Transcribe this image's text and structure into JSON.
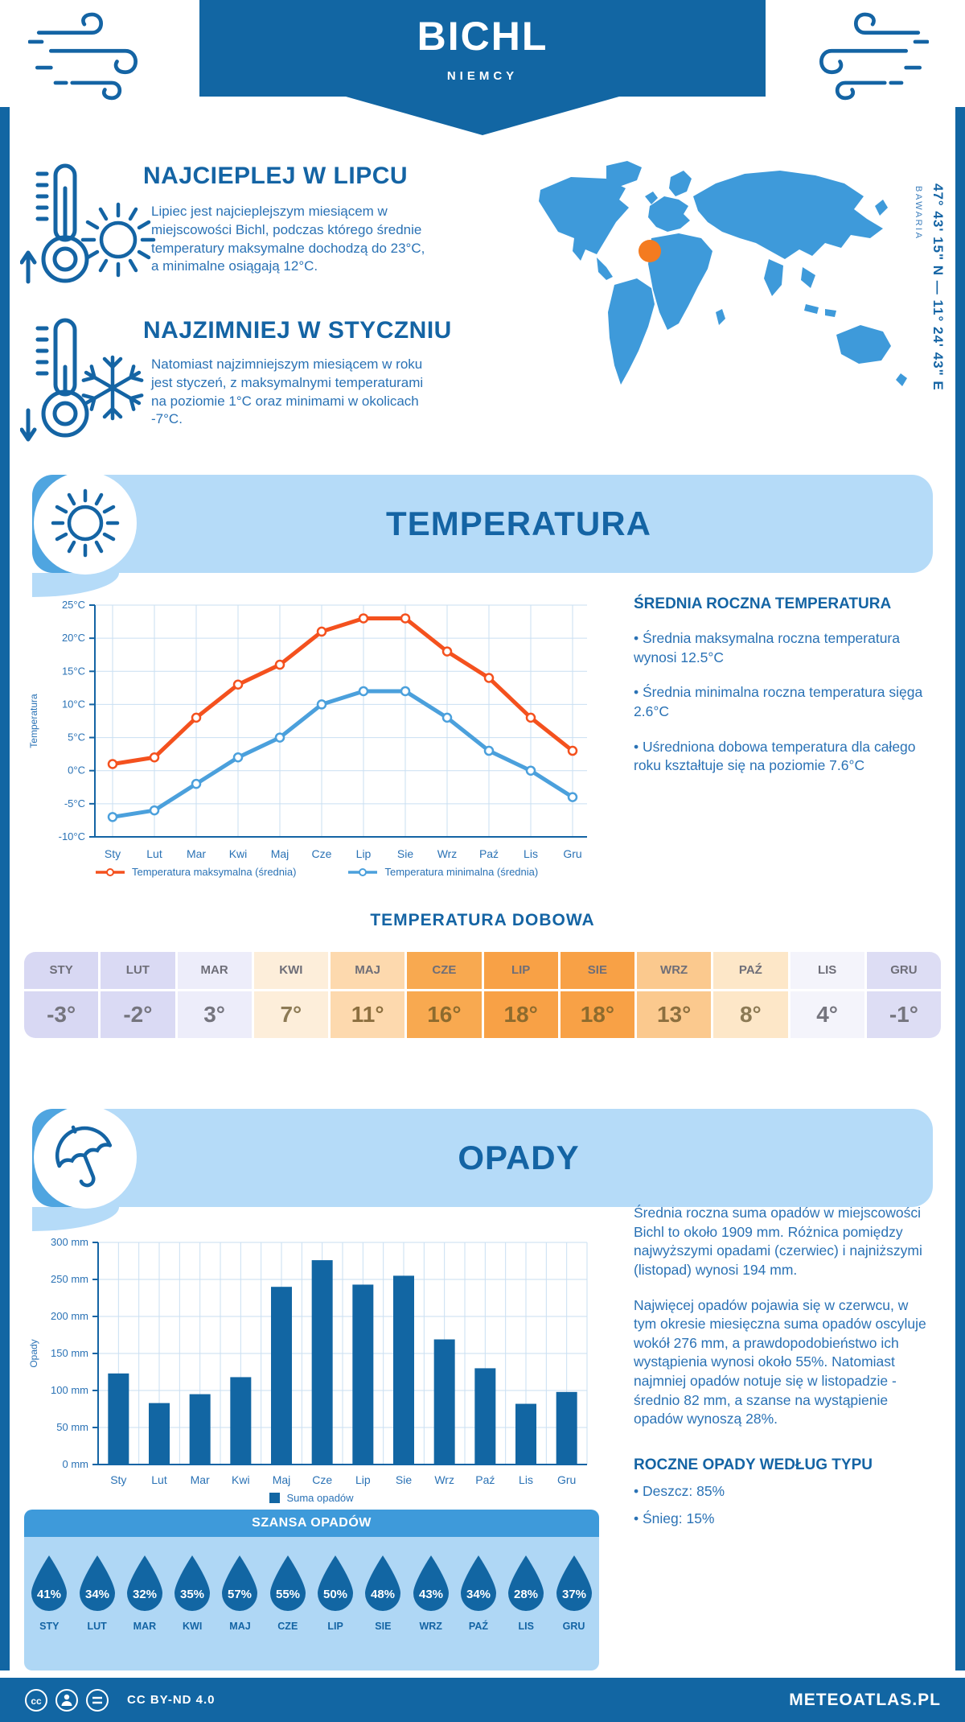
{
  "colors": {
    "primary": "#1266A3",
    "heading": "#1464A4",
    "body_text": "#2A72B5",
    "banner_bg": "#B5DBF8",
    "banner_cap": "#4FA5E0",
    "map_blue": "#3E9ADA",
    "marker_orange": "#F47B20",
    "chance_band": "#3E9ADA",
    "chance_panel": "#AFD7F5",
    "grid": "#C9DFF2",
    "line_max": "#F4511E",
    "line_min": "#4BA0DC",
    "bar": "#1266A3"
  },
  "header": {
    "title": "BICHL",
    "subtitle": "NIEMCY"
  },
  "intro": {
    "warm": {
      "heading": "NAJCIEPLEJ W LIPCU",
      "text": "Lipiec jest najcieplejszym miesiącem w miejscowości Bichl, podczas którego średnie temperatury maksymalne dochodzą do 23°C, a minimalne osiągają 12°C."
    },
    "cold": {
      "heading": "NAJZIMNIEJ W STYCZNIU",
      "text": "Natomiast najzimniejszym miesiącem w roku jest styczeń, z maksymalnymi temperaturami na poziomie 1°C oraz minimami w okolicach -7°C."
    }
  },
  "location": {
    "coordinates": "47° 43' 15\" N — 11° 24' 43\" E",
    "region": "BAWARIA"
  },
  "temperature_section": {
    "banner_title": "TEMPERATURA",
    "summary_heading": "ŚREDNIA ROCZNA TEMPERATURA",
    "bullets": [
      "• Średnia maksymalna roczna temperatura wynosi 12.5°C",
      "• Średnia minimalna roczna temperatura sięga 2.6°C",
      "• Uśredniona dobowa temperatura dla całego roku kształtuje się na poziomie 7.6°C"
    ],
    "daily_heading": "TEMPERATURA DOBOWA",
    "daily": {
      "months": [
        "STY",
        "LUT",
        "MAR",
        "KWI",
        "MAJ",
        "CZE",
        "LIP",
        "SIE",
        "WRZ",
        "PAŹ",
        "LIS",
        "GRU"
      ],
      "values": [
        "-3°",
        "-2°",
        "3°",
        "7°",
        "11°",
        "16°",
        "18°",
        "18°",
        "13°",
        "8°",
        "4°",
        "-1°"
      ],
      "cell_colors": [
        "#D8D8F3",
        "#DADAF4",
        "#EDEDFA",
        "#FDEEDA",
        "#FDD9AE",
        "#F8A950",
        "#F8A146",
        "#F8A146",
        "#FBC98E",
        "#FDE7C8",
        "#F4F4FB",
        "#DDDDF4"
      ],
      "value_colors": [
        "#75757E",
        "#75757E",
        "#75757E",
        "#8C7A55",
        "#8C6F3F",
        "#8D6B2E",
        "#8D6B2E",
        "#8D6B2E",
        "#8C6F3F",
        "#8C7A55",
        "#75757E",
        "#75757E"
      ]
    }
  },
  "precipitation_section": {
    "banner_title": "OPADY",
    "paragraphs": [
      "Średnia roczna suma opadów w miejscowości Bichl to około 1909 mm. Różnica pomiędzy najwyższymi opadami (czerwiec) i najniższymi (listopad) wynosi 194 mm.",
      "Najwięcej opadów pojawia się w czerwcu, w tym okresie miesięczna suma opadów oscyluje wokół 276 mm, a prawdopodobieństwo ich wystąpienia wynosi około 55%. Natomiast najmniej opadów notuje się w listopadzie - średnio 82 mm, a szanse na wystąpienie opadów wynoszą 28%."
    ],
    "type_heading": "ROCZNE OPADY WEDŁUG TYPU",
    "type_bullets": [
      "• Deszcz: 85%",
      "• Śnieg: 15%"
    ],
    "chance": {
      "title": "SZANSA OPADÓW",
      "months": [
        "STY",
        "LUT",
        "MAR",
        "KWI",
        "MAJ",
        "CZE",
        "LIP",
        "SIE",
        "WRZ",
        "PAŹ",
        "LIS",
        "GRU"
      ],
      "values": [
        "41%",
        "34%",
        "32%",
        "35%",
        "57%",
        "55%",
        "50%",
        "48%",
        "43%",
        "34%",
        "28%",
        "37%"
      ]
    }
  },
  "chart_data": [
    {
      "type": "line",
      "title": "Temperatura",
      "categories": [
        "Sty",
        "Lut",
        "Mar",
        "Kwi",
        "Maj",
        "Cze",
        "Lip",
        "Sie",
        "Wrz",
        "Paź",
        "Lis",
        "Gru"
      ],
      "series": [
        {
          "name": "Temperatura maksymalna (średnia)",
          "color": "#F4511E",
          "values": [
            1,
            2,
            8,
            13,
            16,
            21,
            23,
            23,
            18,
            14,
            8,
            3
          ]
        },
        {
          "name": "Temperatura minimalna (średnia)",
          "color": "#4BA0DC",
          "values": [
            -7,
            -6,
            -2,
            2,
            5,
            10,
            12,
            12,
            8,
            3,
            0,
            -4
          ]
        }
      ],
      "xlabel": "",
      "ylabel": "Temperatura",
      "ylim": [
        -10,
        25
      ],
      "ytick_step": 5,
      "ytick_suffix": "°C",
      "grid": true,
      "legend_position": "bottom"
    },
    {
      "type": "bar",
      "title": "Opady",
      "categories": [
        "Sty",
        "Lut",
        "Mar",
        "Kwi",
        "Maj",
        "Cze",
        "Lip",
        "Sie",
        "Wrz",
        "Paź",
        "Lis",
        "Gru"
      ],
      "series": [
        {
          "name": "Suma opadów",
          "color": "#1266A3",
          "values": [
            123,
            83,
            95,
            118,
            240,
            276,
            243,
            255,
            169,
            130,
            82,
            98
          ]
        }
      ],
      "xlabel": "",
      "ylabel": "Opady",
      "ylim": [
        0,
        300
      ],
      "ytick_step": 50,
      "ytick_suffix": " mm",
      "grid": true,
      "legend_position": "bottom"
    }
  ],
  "footer": {
    "license": "CC BY-ND 4.0",
    "site": "METEOATLAS.PL"
  }
}
